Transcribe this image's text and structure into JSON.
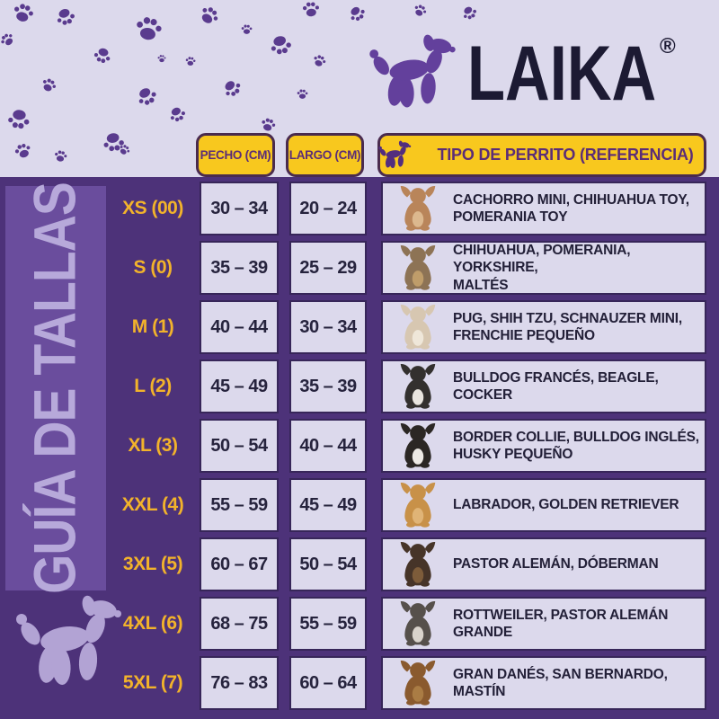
{
  "brand": {
    "name": "LAIKA",
    "registered_mark": "®",
    "logo_icon": "balloon-dog-icon"
  },
  "sidebar": {
    "title": "GUÍA DE TALLAS",
    "footer_icon": "balloon-dog-icon"
  },
  "decor": {
    "pattern_icon": "paw-icon"
  },
  "table": {
    "headers": {
      "chest": "PECHO (CM)",
      "length": "LARGO (CM)",
      "reference": "TIPO DE PERRITO (REFERENCIA)",
      "reference_icon": "balloon-dog-icon"
    },
    "rows": [
      {
        "size": "XS (00)",
        "chest": "30 – 34",
        "length": "20 – 24",
        "breeds": "CACHORRO MINI, CHIHUAHUA TOY,\nPOMERANIA TOY",
        "dog": {
          "name": "chihuahua-toy",
          "color": "#b9855a",
          "accent": "#dcb88e"
        }
      },
      {
        "size": "S (0)",
        "chest": "35 – 39",
        "length": "25 – 29",
        "breeds": "CHIHUAHUA, POMERANIA, YORKSHIRE,\nMALTÉS",
        "dog": {
          "name": "yorkshire",
          "color": "#8d7355",
          "accent": "#bf9d6a"
        }
      },
      {
        "size": "M (1)",
        "chest": "40 – 44",
        "length": "30 – 34",
        "breeds": "PUG, SHIH TZU, SCHNAUZER MINI,\nFRENCHIE PEQUEÑO",
        "dog": {
          "name": "shih-tzu",
          "color": "#d7c7b1",
          "accent": "#efe7d9"
        }
      },
      {
        "size": "L (2)",
        "chest": "45 – 49",
        "length": "35 – 39",
        "breeds": "BULLDOG FRANCÉS, BEAGLE,\nCOCKER",
        "dog": {
          "name": "french-bulldog",
          "color": "#33302e",
          "accent": "#e9e5df"
        }
      },
      {
        "size": "XL (3)",
        "chest": "50 – 54",
        "length": "40 – 44",
        "breeds": "BORDER COLLIE, BULLDOG INGLÉS,\nHUSKY PEQUEÑO",
        "dog": {
          "name": "border-collie",
          "color": "#2b2724",
          "accent": "#edeae5"
        }
      },
      {
        "size": "XXL (4)",
        "chest": "55 – 59",
        "length": "45 – 49",
        "breeds": "LABRADOR, GOLDEN RETRIEVER",
        "dog": {
          "name": "golden-retriever",
          "color": "#c89148",
          "accent": "#e0b476"
        }
      },
      {
        "size": "3XL (5)",
        "chest": "60 – 67",
        "length": "50 – 54",
        "breeds": "PASTOR ALEMÁN, DÓBERMAN",
        "dog": {
          "name": "doberman",
          "color": "#463428",
          "accent": "#7d5c3a"
        }
      },
      {
        "size": "4XL (6)",
        "chest": "68 – 75",
        "length": "55 – 59",
        "breeds": "ROTTWEILER, PASTOR ALEMÁN GRANDE",
        "dog": {
          "name": "rottweiler",
          "color": "#56504b",
          "accent": "#d9d3cb"
        }
      },
      {
        "size": "5XL (7)",
        "chest": "76 – 83",
        "length": "60 – 64",
        "breeds": "GRAN DANÉS, SAN BERNARDO, MASTÍN",
        "dog": {
          "name": "mastiff",
          "color": "#8a5a2e",
          "accent": "#aa7c44"
        }
      }
    ]
  },
  "colors": {
    "background": "#dcd9ec",
    "panel": "#4d3279",
    "band": "#6a4d9d",
    "band_text": "#b7a9da",
    "paw": "#5a3b8e",
    "chip_fill": "#f8c81e",
    "chip_border": "#4a2b4e",
    "chip_text": "#5b2d77",
    "size_label": "#f2b32b",
    "cell_bg": "#dcd9ec",
    "cell_text": "#232038",
    "logo_text": "#1c1a33",
    "logo_dog": "#63409c",
    "footer_dog": "#b2a3d4"
  }
}
